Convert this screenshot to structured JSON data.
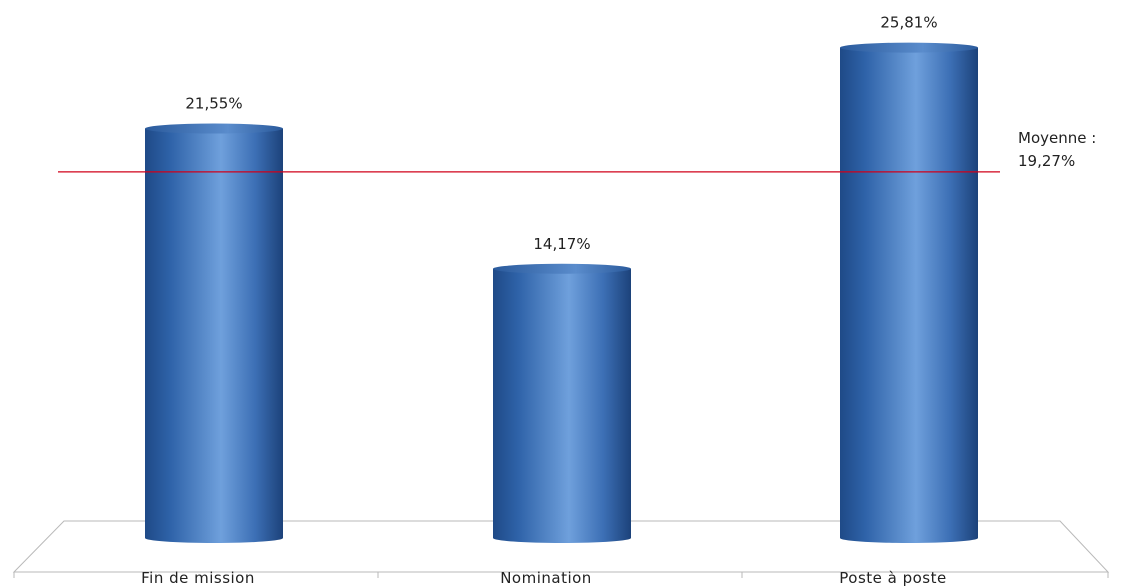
{
  "chart_data": {
    "type": "bar",
    "style": "3d-cylinder",
    "categories": [
      "Fin de mission",
      "Nomination",
      "Poste à poste"
    ],
    "values": [
      21.55,
      14.17,
      25.81
    ],
    "value_labels": [
      "21,55%",
      "14,17%",
      "25,81%"
    ],
    "ylim": [
      0,
      27
    ],
    "grid": false,
    "legend": "none",
    "reference_line": {
      "value": 19.27,
      "label_line1": "Moyenne :",
      "label_line2": "19,27%",
      "color": "#d0001a"
    },
    "bar_color": "#3f74bd"
  }
}
